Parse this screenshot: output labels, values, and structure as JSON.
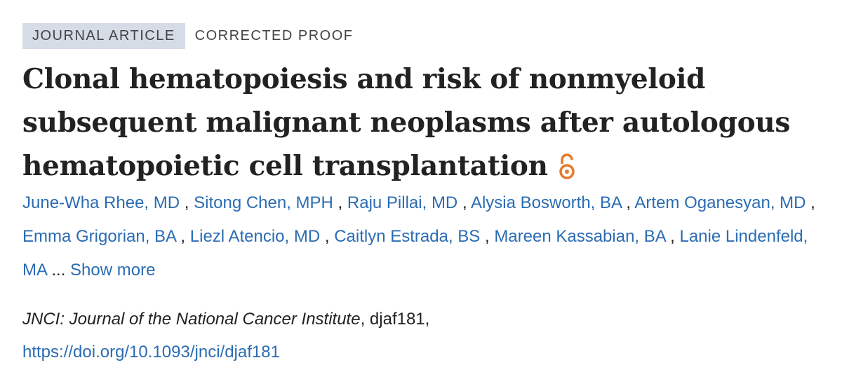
{
  "badges": [
    "JOURNAL ARTICLE",
    "CORRECTED PROOF"
  ],
  "title_lines": [
    "Clonal hematopoiesis and risk of nonmyeloid",
    "subsequent malignant neoplasms after autologous",
    "hematopoietic cell transplantation"
  ],
  "authors": {
    "names": [
      "June-Wha Rhee, MD",
      "Sitong Chen, MPH",
      "Raju Pillai, MD",
      "Alysia Bosworth, BA",
      "Artem Oganesyan, MD",
      "Emma Grigorian, BA",
      "Liezl Atencio, MD",
      "Caitlyn Estrada, BS",
      "Mareen Kassabian, BA",
      "Lanie Lindenfeld, MA"
    ],
    "separator": ",",
    "ellipsis": "...",
    "show_more": "Show more"
  },
  "citation": {
    "journal": "JNCI: Journal of the National Cancer Institute",
    "rest": ", djaf181,",
    "doi": "https://doi.org/10.1093/jnci/djaf181"
  }
}
